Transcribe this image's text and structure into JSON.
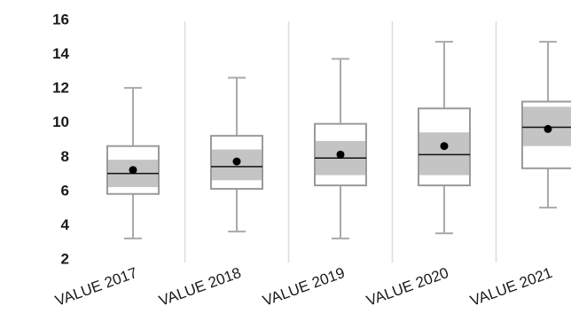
{
  "chart_data": {
    "type": "box",
    "title": "",
    "xlabel": "",
    "ylabel": "",
    "ylim": [
      2,
      16
    ],
    "yticks": [
      2,
      4,
      6,
      8,
      10,
      12,
      14,
      16
    ],
    "grid": false,
    "category_separators": true,
    "categories": [
      "VALUE 2017",
      "VALUE 2018",
      "VALUE 2019",
      "VALUE 2020",
      "VALUE 2021"
    ],
    "boxes": [
      {
        "min": 3.2,
        "q1": 5.8,
        "inner_low": 6.2,
        "median": 7.0,
        "inner_high": 7.8,
        "q3": 8.6,
        "max": 12.0,
        "mean": 7.2
      },
      {
        "min": 3.6,
        "q1": 6.1,
        "inner_low": 6.6,
        "median": 7.4,
        "inner_high": 8.4,
        "q3": 9.2,
        "max": 12.6,
        "mean": 7.7
      },
      {
        "min": 3.2,
        "q1": 6.3,
        "inner_low": 6.9,
        "median": 7.9,
        "inner_high": 8.9,
        "q3": 9.9,
        "max": 13.7,
        "mean": 8.1
      },
      {
        "min": 3.5,
        "q1": 6.3,
        "inner_low": 6.9,
        "median": 8.1,
        "inner_high": 9.4,
        "q3": 10.8,
        "max": 14.7,
        "mean": 8.6
      },
      {
        "min": 5.0,
        "q1": 7.3,
        "inner_low": 8.6,
        "median": 9.7,
        "inner_high": 10.9,
        "q3": 11.2,
        "max": 14.7,
        "mean": 9.6
      }
    ],
    "colors": {
      "whisker": "#aaaaaa",
      "box_outline": "#9a9a9a",
      "inner_band": "#c4c4c4",
      "median": "#111111",
      "mean": "#000000",
      "separator": "#dddddd",
      "text": "#1a1a1a"
    }
  }
}
